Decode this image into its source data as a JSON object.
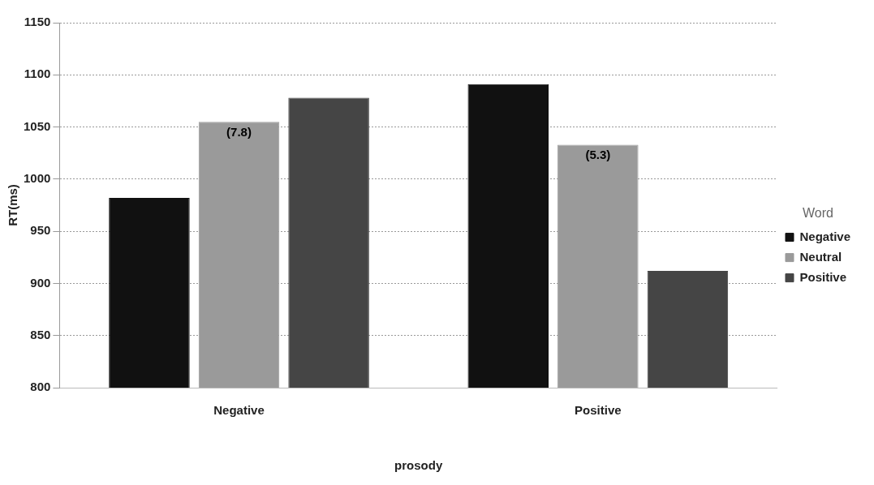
{
  "chart_data": {
    "type": "bar",
    "xlabel": "prosody",
    "ylabel": "RT(ms)",
    "legend_title": "Word",
    "categories": [
      "Negative",
      "Positive"
    ],
    "series": [
      {
        "name": "Negative",
        "color": "#111111",
        "values": [
          982,
          1091
        ]
      },
      {
        "name": "Neutral",
        "color": "#9a9a9a",
        "values": [
          1055,
          1033
        ]
      },
      {
        "name": "Positive",
        "color": "#454545",
        "values": [
          1078,
          912
        ]
      }
    ],
    "annotations": [
      {
        "text": "(7.8)",
        "x": "Negative",
        "y": 1055
      },
      {
        "text": "(5.3)",
        "x": "Positive",
        "y": 1033
      }
    ],
    "ylim": [
      800,
      1150
    ],
    "yticks": [
      800,
      850,
      900,
      950,
      1000,
      1050,
      1100,
      1150
    ],
    "grid": "y",
    "legend": "right"
  }
}
